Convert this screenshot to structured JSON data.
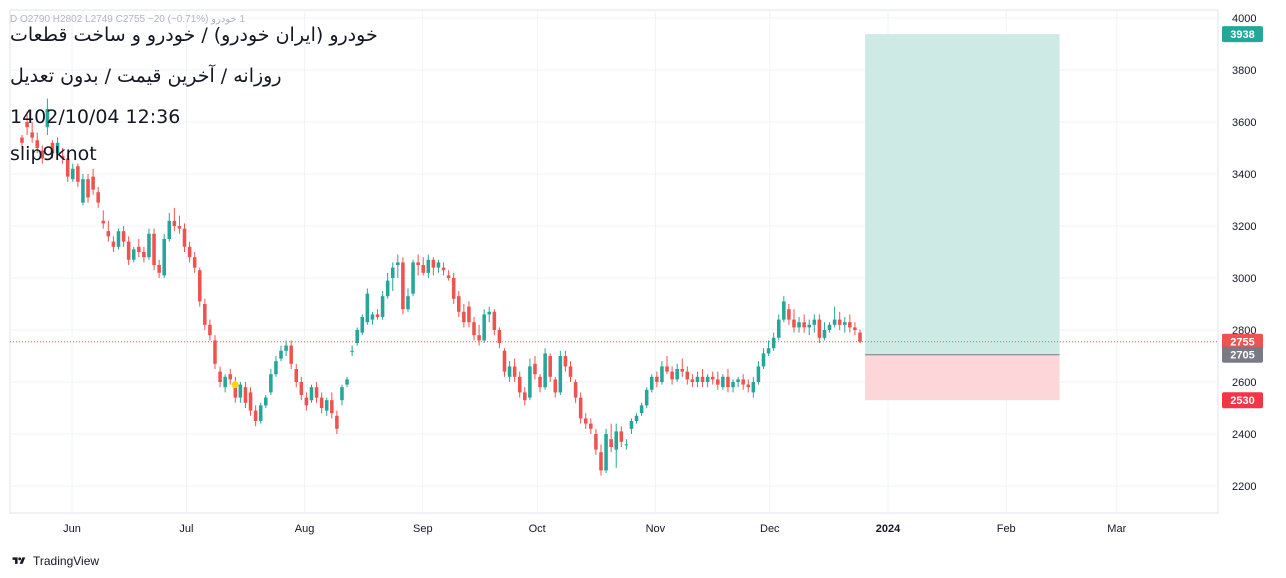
{
  "header": {
    "ohlc_line": "1  خودرو  D  O2790  H2802  L2749  C2755  −20 (−0.71%)",
    "title": "خودرو (ایران خودرو) / خودرو و ساخت قطعات",
    "subtitle": "روزانه / آخرین قیمت / بدون تعدیل",
    "timestamp": "1402/10/04 12:36",
    "author": "slip9knot"
  },
  "footer": {
    "brand": "TradingView",
    "logo_icon": "tradingview-logo-icon"
  },
  "colors": {
    "up": "#26a69a",
    "down": "#ef5350",
    "profit_zone": "#cdeae5",
    "loss_zone": "#fdd6d9",
    "target_badge": "#26a69a",
    "stop_badge": "#f23645",
    "last_badge": "#ef5350",
    "entry_badge": "#787b86",
    "grid": "#f0f3fa",
    "marker": "#ffd600"
  },
  "chart_data": {
    "type": "candlestick",
    "x_axis": {
      "ticks": [
        "Jun",
        "Jul",
        "Aug",
        "Sep",
        "Oct",
        "Nov",
        "Dec",
        "2024",
        "Feb",
        "Mar"
      ],
      "tick_dates": [
        "2023-06-01",
        "2023-07-01",
        "2023-08-01",
        "2023-09-01",
        "2023-10-01",
        "2023-11-01",
        "2023-12-01",
        "2024-01-01",
        "2024-02-01",
        "2024-03-01"
      ]
    },
    "y_axis": {
      "ticks": [
        2200,
        2400,
        2600,
        2800,
        3000,
        3200,
        3400,
        3600,
        3800,
        4000
      ],
      "range": [
        2100,
        4060
      ]
    },
    "grid": true,
    "candles": [
      [
        3540,
        3550,
        3500,
        3520
      ],
      [
        3600,
        3640,
        3550,
        3580
      ],
      [
        3560,
        3600,
        3520,
        3540
      ],
      [
        3530,
        3560,
        3480,
        3500
      ],
      [
        3490,
        3510,
        3440,
        3460
      ],
      [
        3580,
        3690,
        3550,
        3650
      ],
      [
        3520,
        3530,
        3460,
        3480
      ],
      [
        3480,
        3540,
        3460,
        3520
      ],
      [
        3470,
        3500,
        3440,
        3460
      ],
      [
        3460,
        3480,
        3370,
        3390
      ],
      [
        3380,
        3440,
        3370,
        3420
      ],
      [
        3430,
        3440,
        3350,
        3370
      ],
      [
        3290,
        3400,
        3280,
        3380
      ],
      [
        3380,
        3400,
        3290,
        3310
      ],
      [
        3390,
        3420,
        3320,
        3340
      ],
      [
        3330,
        3350,
        3270,
        3290
      ],
      [
        3220,
        3260,
        3190,
        3210
      ],
      [
        3180,
        3220,
        3140,
        3160
      ],
      [
        3140,
        3160,
        3100,
        3120
      ],
      [
        3120,
        3190,
        3110,
        3180
      ],
      [
        3180,
        3200,
        3120,
        3140
      ],
      [
        3140,
        3160,
        3050,
        3070
      ],
      [
        3070,
        3120,
        3060,
        3110
      ],
      [
        3120,
        3150,
        3080,
        3100
      ],
      [
        3100,
        3120,
        3060,
        3080
      ],
      [
        3080,
        3190,
        3070,
        3170
      ],
      [
        3170,
        3190,
        3030,
        3050
      ],
      [
        3050,
        3070,
        3000,
        3020
      ],
      [
        3010,
        3170,
        3000,
        3150
      ],
      [
        3150,
        3250,
        3140,
        3220
      ],
      [
        3220,
        3270,
        3180,
        3200
      ],
      [
        3200,
        3240,
        3170,
        3190
      ],
      [
        3190,
        3210,
        3100,
        3120
      ],
      [
        3120,
        3140,
        3060,
        3080
      ],
      [
        3080,
        3100,
        3020,
        3040
      ],
      [
        3030,
        3040,
        2890,
        2910
      ],
      [
        2900,
        2920,
        2800,
        2820
      ],
      [
        2820,
        2840,
        2760,
        2780
      ],
      [
        2760,
        2780,
        2650,
        2670
      ],
      [
        2640,
        2660,
        2580,
        2600
      ],
      [
        2580,
        2630,
        2560,
        2620
      ],
      [
        2630,
        2650,
        2590,
        2610
      ],
      [
        2600,
        2620,
        2520,
        2540
      ],
      [
        2540,
        2600,
        2520,
        2590
      ],
      [
        2580,
        2600,
        2500,
        2520
      ],
      [
        2560,
        2580,
        2470,
        2490
      ],
      [
        2490,
        2510,
        2430,
        2450
      ],
      [
        2450,
        2520,
        2440,
        2510
      ],
      [
        2510,
        2550,
        2500,
        2540
      ],
      [
        2560,
        2650,
        2550,
        2630
      ],
      [
        2630,
        2700,
        2620,
        2680
      ],
      [
        2690,
        2740,
        2680,
        2720
      ],
      [
        2720,
        2760,
        2700,
        2740
      ],
      [
        2740,
        2760,
        2650,
        2670
      ],
      [
        2650,
        2670,
        2580,
        2600
      ],
      [
        2600,
        2620,
        2530,
        2550
      ],
      [
        2540,
        2560,
        2490,
        2510
      ],
      [
        2530,
        2590,
        2520,
        2580
      ],
      [
        2580,
        2600,
        2520,
        2540
      ],
      [
        2540,
        2560,
        2480,
        2500
      ],
      [
        2490,
        2540,
        2470,
        2530
      ],
      [
        2530,
        2560,
        2460,
        2480
      ],
      [
        2470,
        2490,
        2400,
        2420
      ],
      [
        2530,
        2590,
        2510,
        2580
      ],
      [
        2590,
        2620,
        2580,
        2610
      ],
      [
        2720,
        2740,
        2700,
        2720
      ],
      [
        2750,
        2810,
        2740,
        2800
      ],
      [
        2790,
        2860,
        2780,
        2850
      ],
      [
        2830,
        2960,
        2820,
        2940
      ],
      [
        2840,
        2870,
        2820,
        2860
      ],
      [
        2860,
        2880,
        2840,
        2850
      ],
      [
        2850,
        2950,
        2840,
        2930
      ],
      [
        2930,
        3020,
        2920,
        2990
      ],
      [
        3000,
        3060,
        2950,
        3040
      ],
      [
        3050,
        3090,
        3000,
        3060
      ],
      [
        3060,
        3080,
        2860,
        2880
      ],
      [
        2880,
        2960,
        2870,
        2930
      ],
      [
        2940,
        3070,
        2930,
        3060
      ],
      [
        3060,
        3090,
        3010,
        3050
      ],
      [
        3050,
        3080,
        3010,
        3020
      ],
      [
        3020,
        3090,
        3000,
        3070
      ],
      [
        3070,
        3080,
        3010,
        3040
      ],
      [
        3040,
        3070,
        3020,
        3060
      ],
      [
        3040,
        3060,
        3010,
        3030
      ],
      [
        3010,
        3030,
        2990,
        3000
      ],
      [
        3000,
        3020,
        2900,
        2920
      ],
      [
        2930,
        2950,
        2850,
        2870
      ],
      [
        2870,
        2900,
        2810,
        2830
      ],
      [
        2890,
        2910,
        2810,
        2830
      ],
      [
        2830,
        2850,
        2760,
        2780
      ],
      [
        2780,
        2820,
        2740,
        2760
      ],
      [
        2760,
        2880,
        2750,
        2860
      ],
      [
        2860,
        2890,
        2830,
        2870
      ],
      [
        2870,
        2880,
        2780,
        2800
      ],
      [
        2800,
        2810,
        2730,
        2750
      ],
      [
        2720,
        2730,
        2620,
        2640
      ],
      [
        2620,
        2680,
        2600,
        2660
      ],
      [
        2660,
        2690,
        2600,
        2620
      ],
      [
        2620,
        2640,
        2540,
        2560
      ],
      [
        2560,
        2580,
        2510,
        2530
      ],
      [
        2540,
        2690,
        2530,
        2660
      ],
      [
        2670,
        2700,
        2610,
        2630
      ],
      [
        2620,
        2630,
        2560,
        2580
      ],
      [
        2580,
        2730,
        2570,
        2710
      ],
      [
        2700,
        2710,
        2600,
        2620
      ],
      [
        2610,
        2620,
        2540,
        2560
      ],
      [
        2560,
        2720,
        2550,
        2700
      ],
      [
        2700,
        2720,
        2640,
        2660
      ],
      [
        2660,
        2680,
        2600,
        2620
      ],
      [
        2600,
        2610,
        2520,
        2540
      ],
      [
        2540,
        2560,
        2440,
        2460
      ],
      [
        2460,
        2480,
        2420,
        2440
      ],
      [
        2440,
        2460,
        2400,
        2420
      ],
      [
        2400,
        2420,
        2320,
        2340
      ],
      [
        2330,
        2360,
        2240,
        2260
      ],
      [
        2260,
        2420,
        2250,
        2400
      ],
      [
        2380,
        2440,
        2330,
        2350
      ],
      [
        2340,
        2440,
        2270,
        2410
      ],
      [
        2410,
        2430,
        2350,
        2370
      ],
      [
        2360,
        2380,
        2340,
        2360
      ],
      [
        2420,
        2460,
        2400,
        2450
      ],
      [
        2450,
        2480,
        2440,
        2470
      ],
      [
        2480,
        2520,
        2470,
        2510
      ],
      [
        2510,
        2580,
        2500,
        2570
      ],
      [
        2570,
        2630,
        2560,
        2620
      ],
      [
        2620,
        2640,
        2580,
        2600
      ],
      [
        2600,
        2680,
        2590,
        2660
      ],
      [
        2660,
        2700,
        2630,
        2640
      ],
      [
        2640,
        2660,
        2590,
        2610
      ],
      [
        2610,
        2670,
        2600,
        2650
      ],
      [
        2650,
        2690,
        2620,
        2640
      ],
      [
        2640,
        2660,
        2590,
        2610
      ],
      [
        2610,
        2630,
        2580,
        2600
      ],
      [
        2600,
        2640,
        2580,
        2620
      ],
      [
        2620,
        2650,
        2580,
        2600
      ],
      [
        2600,
        2630,
        2580,
        2620
      ],
      [
        2620,
        2640,
        2590,
        2610
      ],
      [
        2610,
        2640,
        2570,
        2590
      ],
      [
        2580,
        2630,
        2570,
        2620
      ],
      [
        2620,
        2650,
        2560,
        2580
      ],
      [
        2580,
        2610,
        2560,
        2600
      ],
      [
        2600,
        2620,
        2580,
        2610
      ],
      [
        2610,
        2630,
        2570,
        2590
      ],
      [
        2590,
        2610,
        2560,
        2580
      ],
      [
        2560,
        2620,
        2540,
        2600
      ],
      [
        2600,
        2680,
        2590,
        2660
      ],
      [
        2660,
        2730,
        2650,
        2710
      ],
      [
        2710,
        2760,
        2700,
        2730
      ],
      [
        2730,
        2790,
        2720,
        2770
      ],
      [
        2770,
        2860,
        2760,
        2840
      ],
      [
        2840,
        2930,
        2830,
        2910
      ],
      [
        2880,
        2900,
        2820,
        2840
      ],
      [
        2840,
        2880,
        2790,
        2810
      ],
      [
        2810,
        2850,
        2790,
        2830
      ],
      [
        2830,
        2860,
        2790,
        2810
      ],
      [
        2810,
        2840,
        2780,
        2820
      ],
      [
        2820,
        2860,
        2790,
        2840
      ],
      [
        2840,
        2860,
        2750,
        2770
      ],
      [
        2770,
        2830,
        2760,
        2800
      ],
      [
        2800,
        2830,
        2790,
        2820
      ],
      [
        2820,
        2890,
        2810,
        2840
      ],
      [
        2840,
        2870,
        2800,
        2820
      ],
      [
        2820,
        2850,
        2790,
        2830
      ],
      [
        2830,
        2860,
        2790,
        2810
      ],
      [
        2810,
        2830,
        2780,
        2800
      ],
      [
        2790,
        2802,
        2749,
        2755
      ]
    ],
    "marker": {
      "type": "dot",
      "candle_index": 40,
      "price": 2620
    },
    "last_price": 2755,
    "position": {
      "type": "long",
      "entry": 2705,
      "target": 3938,
      "stop": 2530,
      "start_date": "2023-12-26",
      "end_date": "2024-02-15"
    },
    "price_labels": {
      "target": "3938",
      "last": "2755",
      "entry": "2705",
      "stop": "2530"
    }
  }
}
